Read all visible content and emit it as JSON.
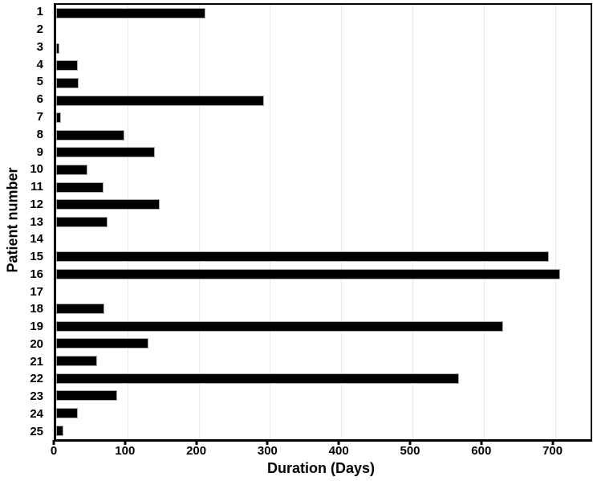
{
  "chart_data": {
    "type": "bar",
    "orientation": "horizontal",
    "title": "",
    "xlabel": "Duration (Days)",
    "ylabel": "Patient number",
    "categories": [
      "1",
      "2",
      "3",
      "4",
      "5",
      "6",
      "7",
      "8",
      "9",
      "10",
      "11",
      "12",
      "13",
      "14",
      "15",
      "16",
      "17",
      "18",
      "19",
      "20",
      "21",
      "22",
      "23",
      "24",
      "25"
    ],
    "values": [
      210,
      0,
      4,
      30,
      32,
      292,
      7,
      96,
      138,
      44,
      66,
      145,
      72,
      0,
      691,
      707,
      0,
      68,
      627,
      130,
      57,
      565,
      86,
      30,
      10
    ],
    "xlim": [
      0,
      750
    ],
    "xticks": [
      0,
      100,
      200,
      300,
      400,
      500,
      600,
      700
    ],
    "xtick_labels": [
      "0",
      "100",
      "200",
      "300",
      "400",
      "500",
      "600",
      "700"
    ],
    "grid": "vertical",
    "legend": "none",
    "bar_color": "#000000",
    "bar_edge_color": "#ababab",
    "grid_color": "#e9e9e9",
    "frame_color": "#000000",
    "background_color": "#ffffff"
  }
}
